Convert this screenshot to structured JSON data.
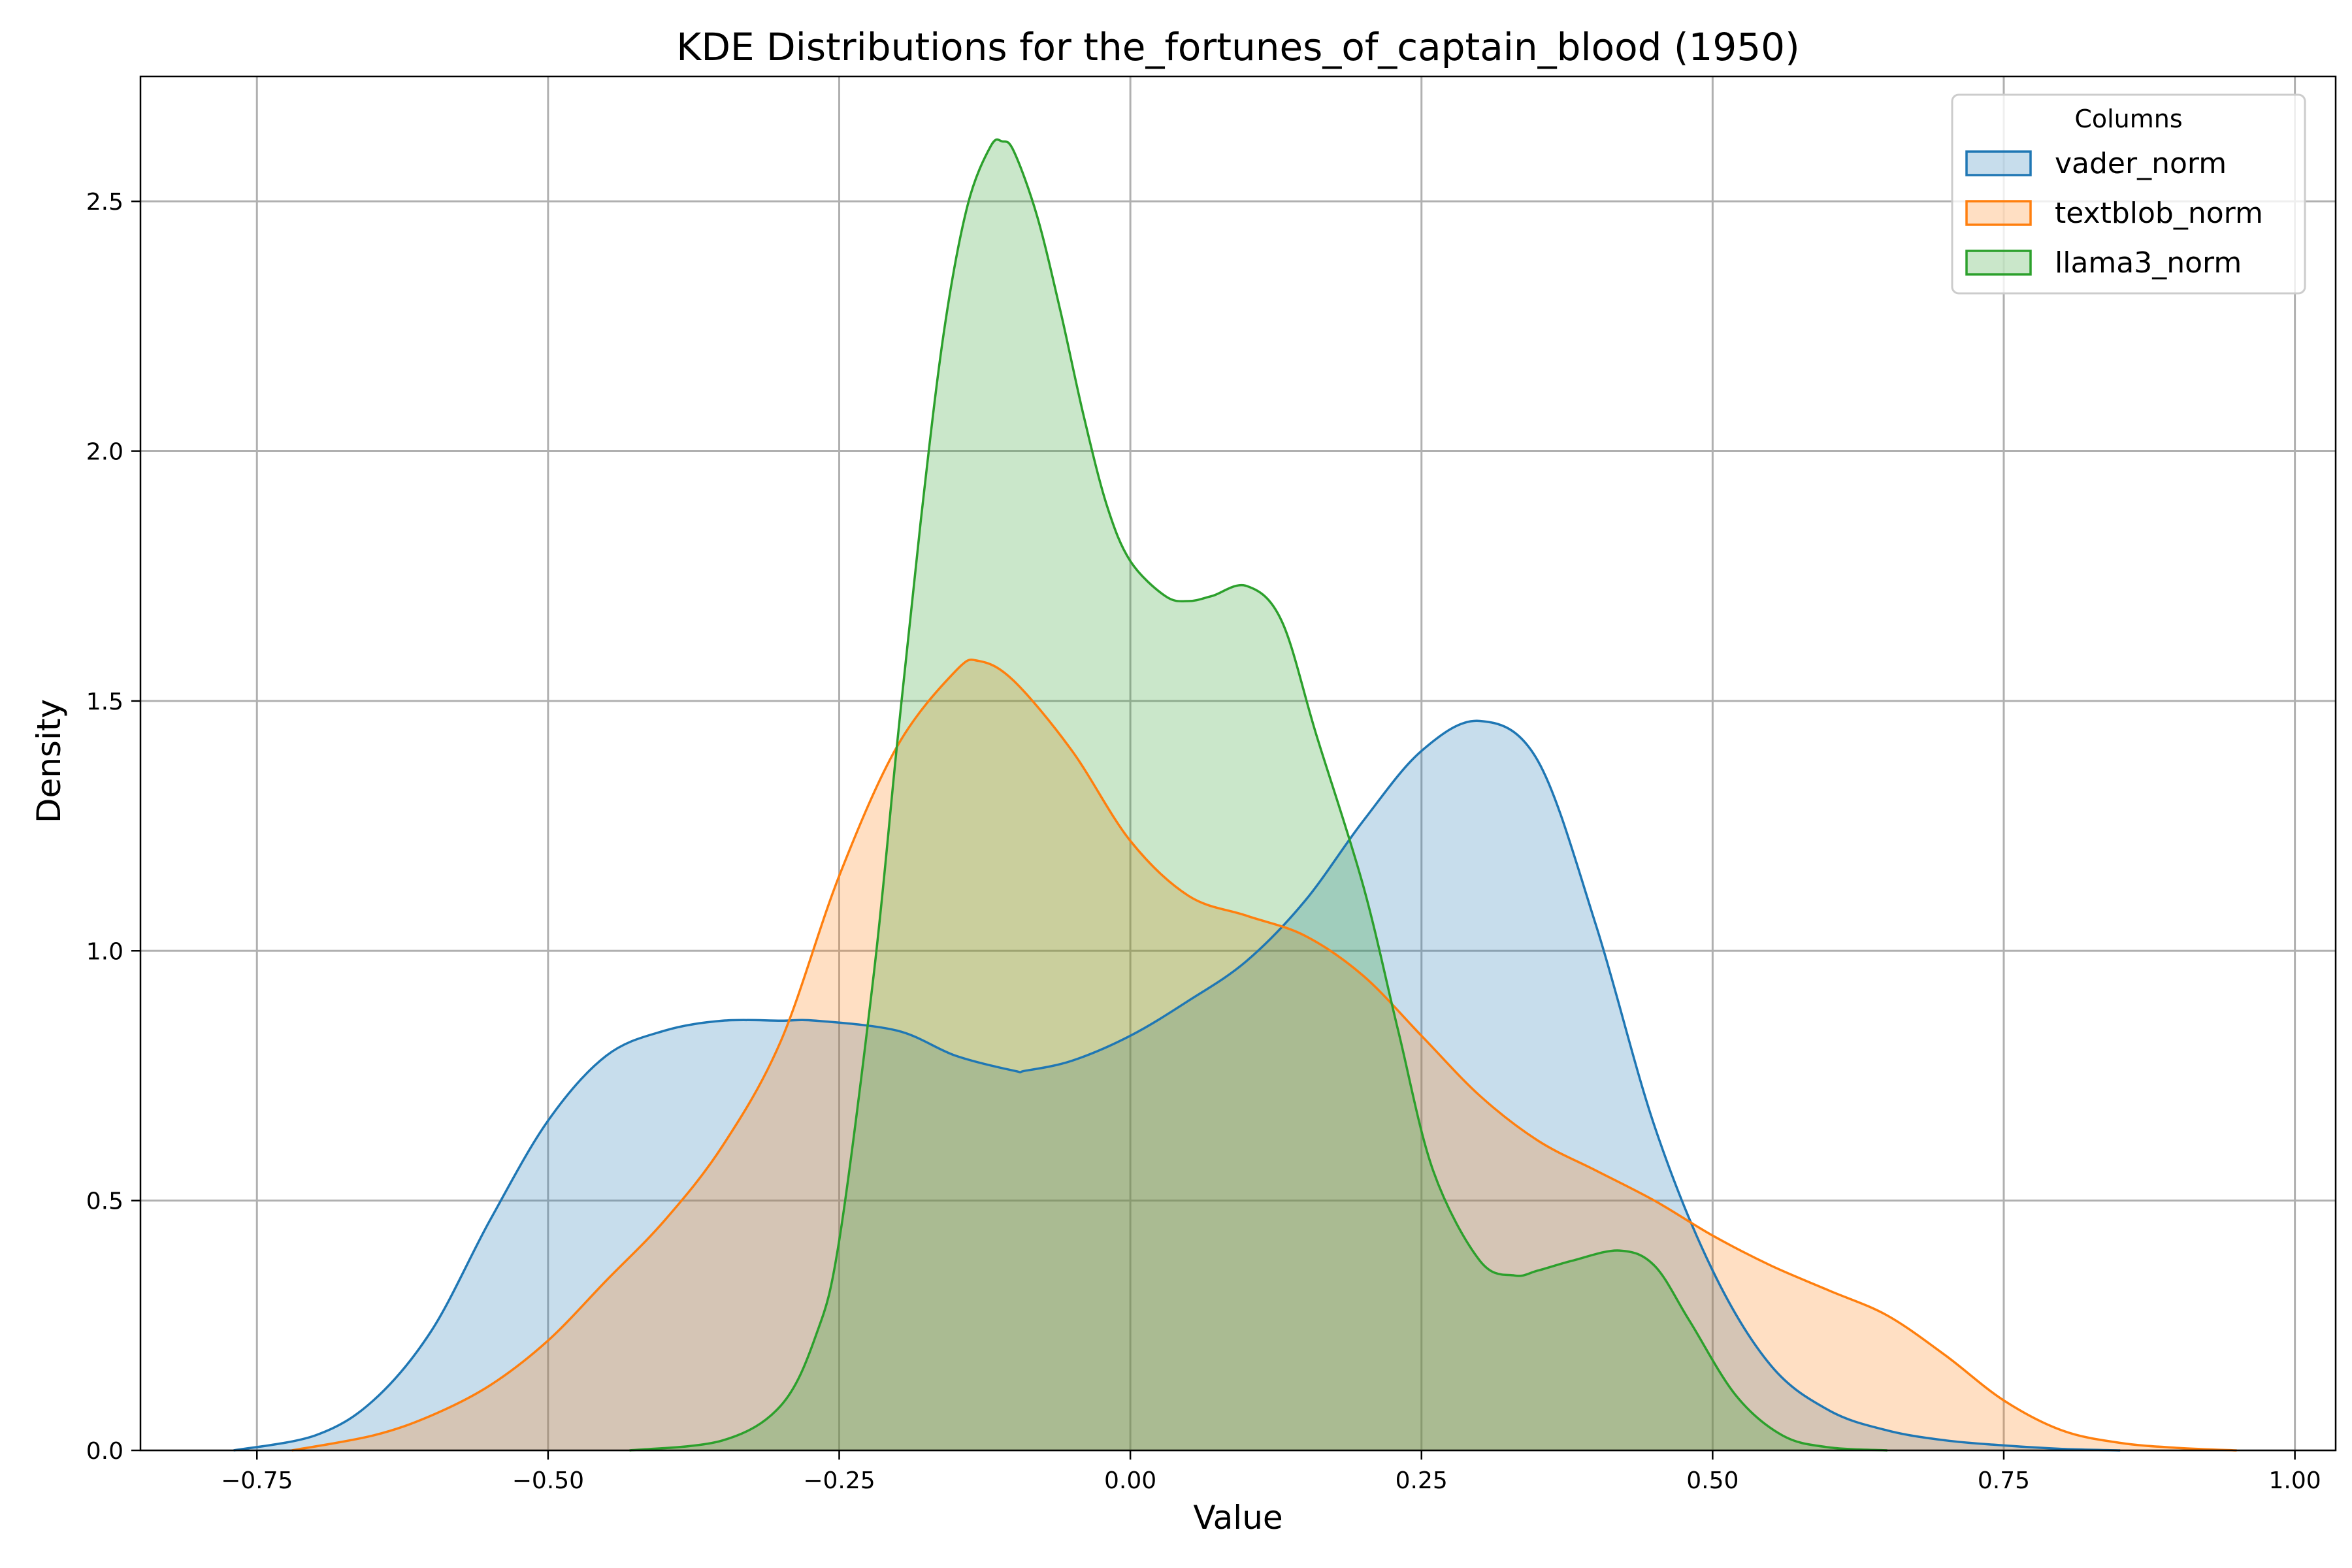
{
  "chart_data": {
    "type": "area",
    "title": "KDE Distributions for the_fortunes_of_captain_blood (1950)",
    "xlabel": "Value",
    "ylabel": "Density",
    "xlim": [
      -0.85,
      1.035
    ],
    "ylim": [
      0,
      2.75
    ],
    "xticks": [
      -0.75,
      -0.5,
      -0.25,
      0.0,
      0.25,
      0.5,
      0.75,
      1.0
    ],
    "xtick_labels": [
      "−0.75",
      "−0.50",
      "−0.25",
      "0.00",
      "0.25",
      "0.50",
      "0.75",
      "1.00"
    ],
    "yticks": [
      0.0,
      0.5,
      1.0,
      1.5,
      2.0,
      2.5
    ],
    "ytick_labels": [
      "0.0",
      "0.5",
      "1.0",
      "1.5",
      "2.0",
      "2.5"
    ],
    "grid": true,
    "legend": {
      "title": "Columns",
      "position": "top-right"
    },
    "series": [
      {
        "name": "vader_norm",
        "color": "#1f77b4",
        "x": [
          -0.77,
          -0.7,
          -0.65,
          -0.6,
          -0.55,
          -0.5,
          -0.45,
          -0.4,
          -0.35,
          -0.3,
          -0.27,
          -0.2,
          -0.15,
          -0.1,
          -0.09,
          -0.05,
          0.0,
          0.05,
          0.1,
          0.15,
          0.2,
          0.25,
          0.3,
          0.35,
          0.4,
          0.45,
          0.5,
          0.55,
          0.6,
          0.65,
          0.7,
          0.75,
          0.8,
          0.85
        ],
        "y": [
          0.0,
          0.03,
          0.1,
          0.24,
          0.46,
          0.66,
          0.79,
          0.84,
          0.86,
          0.86,
          0.86,
          0.84,
          0.79,
          0.76,
          0.76,
          0.78,
          0.83,
          0.9,
          0.98,
          1.1,
          1.26,
          1.4,
          1.46,
          1.38,
          1.05,
          0.65,
          0.36,
          0.17,
          0.08,
          0.04,
          0.02,
          0.01,
          0.003,
          0.0
        ]
      },
      {
        "name": "textblob_norm",
        "color": "#ff7f0e",
        "x": [
          -0.72,
          -0.65,
          -0.6,
          -0.55,
          -0.5,
          -0.45,
          -0.4,
          -0.35,
          -0.3,
          -0.25,
          -0.2,
          -0.15,
          -0.13,
          -0.1,
          -0.05,
          0.0,
          0.05,
          0.1,
          0.15,
          0.2,
          0.25,
          0.3,
          0.35,
          0.4,
          0.45,
          0.5,
          0.55,
          0.6,
          0.65,
          0.7,
          0.75,
          0.8,
          0.85,
          0.9,
          0.95
        ],
        "y": [
          0.0,
          0.03,
          0.07,
          0.13,
          0.22,
          0.34,
          0.46,
          0.61,
          0.82,
          1.15,
          1.41,
          1.56,
          1.58,
          1.54,
          1.4,
          1.22,
          1.11,
          1.07,
          1.03,
          0.95,
          0.83,
          0.71,
          0.62,
          0.56,
          0.5,
          0.43,
          0.37,
          0.32,
          0.27,
          0.19,
          0.1,
          0.04,
          0.015,
          0.005,
          0.0
        ]
      },
      {
        "name": "llama3_norm",
        "color": "#2ca02c",
        "x": [
          -0.43,
          -0.35,
          -0.3,
          -0.27,
          -0.25,
          -0.22,
          -0.2,
          -0.18,
          -0.16,
          -0.14,
          -0.12,
          -0.11,
          -0.1,
          -0.08,
          -0.06,
          -0.04,
          -0.02,
          0.0,
          0.03,
          0.05,
          0.07,
          0.1,
          0.13,
          0.16,
          0.2,
          0.23,
          0.26,
          0.3,
          0.33,
          0.35,
          0.38,
          0.42,
          0.45,
          0.48,
          0.52,
          0.56,
          0.6,
          0.65
        ],
        "y": [
          0.0,
          0.02,
          0.09,
          0.23,
          0.42,
          0.96,
          1.42,
          1.86,
          2.24,
          2.49,
          2.61,
          2.62,
          2.6,
          2.47,
          2.28,
          2.07,
          1.89,
          1.78,
          1.71,
          1.7,
          1.71,
          1.73,
          1.66,
          1.43,
          1.13,
          0.84,
          0.56,
          0.38,
          0.35,
          0.36,
          0.38,
          0.4,
          0.37,
          0.26,
          0.11,
          0.03,
          0.006,
          0.0
        ]
      }
    ]
  }
}
